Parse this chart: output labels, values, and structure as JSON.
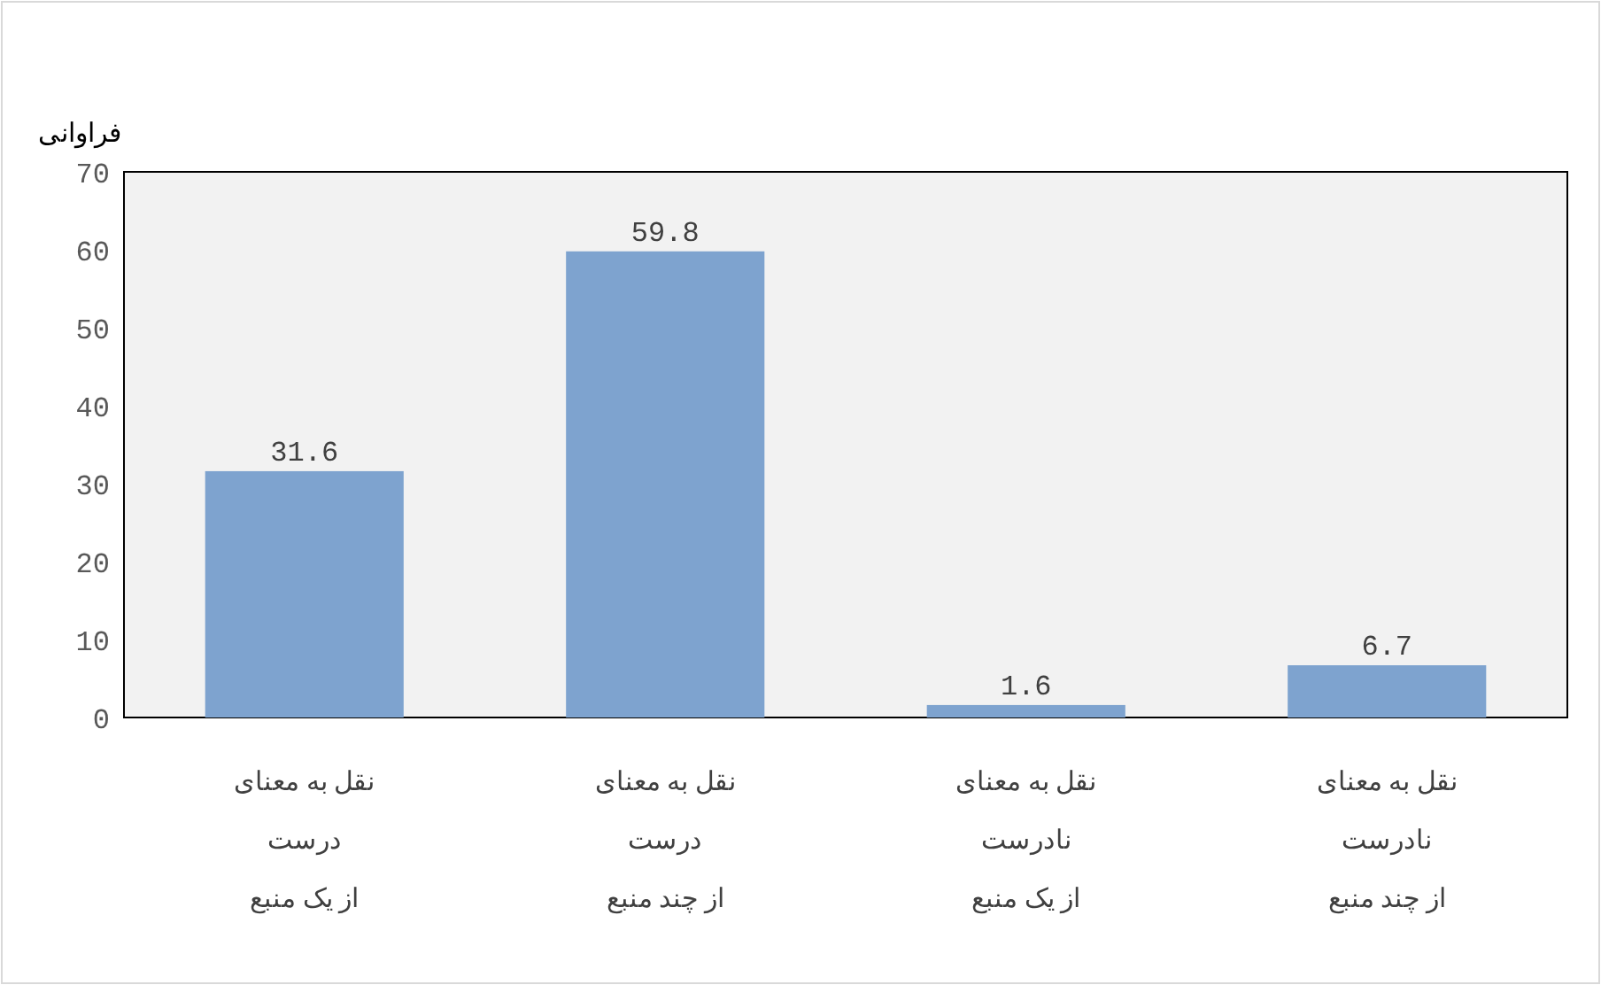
{
  "chart_data": {
    "type": "bar",
    "ylabel": "فراوانی",
    "categories": [
      "نقل به معنای\nدرست\nاز یک منبع",
      "نقل به معنای\nدرست\nاز چند منبع",
      "نقل به معنای\nنادرست\nاز یک منبع",
      "نقل به معنای\nنادرست\nاز چند منبع"
    ],
    "values": [
      31.6,
      59.8,
      1.6,
      6.7
    ],
    "color": "#7ea3cf",
    "ylim": [
      0,
      70
    ],
    "yticks": [
      0,
      10,
      20,
      30,
      40,
      50,
      60,
      70
    ],
    "data_labels": true
  }
}
